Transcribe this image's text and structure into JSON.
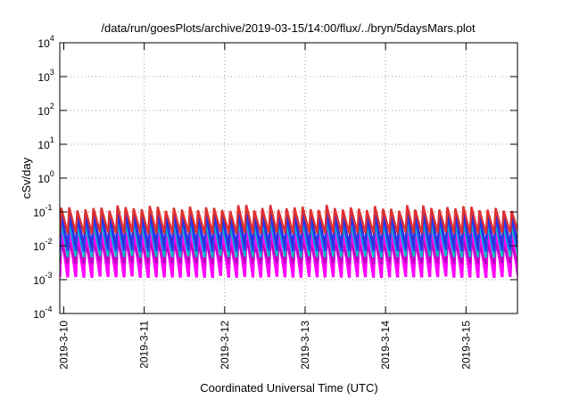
{
  "chart_data": {
    "type": "line",
    "title": "/data/run/goesPlots/archive/2019-03-15/14:00/flux/../bryn/5daysMars.plot",
    "xlabel": "Coordinated Universal Time (UTC)",
    "ylabel": "cSv/day",
    "y_scale": "log",
    "ylim": [
      0.0001,
      10000
    ],
    "xlim_days": [
      0,
      5.64
    ],
    "x_ticks": [
      "2019-3-10",
      "2019-3-11",
      "2019-3-12",
      "2019-3-13",
      "2019-3-14",
      "2019-3-15"
    ],
    "y_ticks": [
      {
        "base": "10",
        "exp": "-4",
        "value": 0.0001
      },
      {
        "base": "10",
        "exp": "-3",
        "value": 0.001
      },
      {
        "base": "10",
        "exp": "-2",
        "value": 0.01
      },
      {
        "base": "10",
        "exp": "-1",
        "value": 0.1
      },
      {
        "base": "10",
        "exp": "0",
        "value": 1
      },
      {
        "base": "10",
        "exp": "1",
        "value": 10
      },
      {
        "base": "10",
        "exp": "2",
        "value": 100
      },
      {
        "base": "10",
        "exp": "3",
        "value": 1000
      },
      {
        "base": "10",
        "exp": "4",
        "value": 10000
      }
    ],
    "grid": true,
    "reference_line": {
      "value": 0.1,
      "color": "#e03030"
    },
    "cycle_period_days": 0.1,
    "series": [
      {
        "color": "#ff00ff",
        "peak": 0.03,
        "trough": 0.001
      },
      {
        "color": "#ff00ff",
        "peak": 0.02,
        "trough": 0.0013
      },
      {
        "color": "#c000c0",
        "peak": 0.012,
        "trough": 0.0025
      },
      {
        "color": "#00c0c0",
        "peak": 0.05,
        "trough": 0.004
      },
      {
        "color": "#2040ff",
        "peak": 0.08,
        "trough": 0.006
      },
      {
        "color": "#3030e0",
        "peak": 0.11,
        "trough": 0.008
      },
      {
        "color": "#e03030",
        "peak": 0.13,
        "trough": 0.02
      }
    ]
  },
  "colors": {
    "background": "#ffffff",
    "grid": "#a0a0a0",
    "text": "#000000"
  }
}
